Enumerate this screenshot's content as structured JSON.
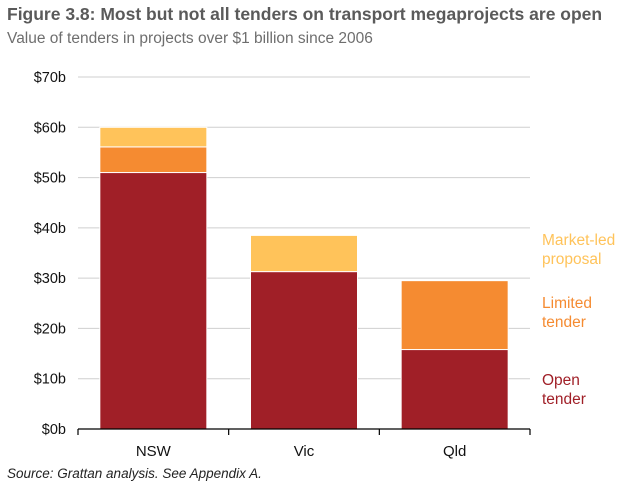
{
  "chart_data": {
    "type": "bar",
    "stacked": true,
    "title": "Figure 3.8: Most but not all tenders on transport megaprojects are open",
    "subtitle": "Value of tenders in projects over $1 billion since 2006",
    "source": "Source: Grattan analysis. See Appendix A.",
    "categories": [
      "NSW",
      "Vic",
      "Qld"
    ],
    "series": [
      {
        "name": "Open tender",
        "label_lines": [
          "Open",
          "tender"
        ],
        "color": "#a01f27",
        "values": [
          51,
          31.3,
          15.8
        ]
      },
      {
        "name": "Limited tender",
        "label_lines": [
          "Limited",
          "tender"
        ],
        "color": "#f58b31",
        "values": [
          5.1,
          0,
          13.7
        ]
      },
      {
        "name": "Market-led proposal",
        "label_lines": [
          "Market-led",
          "proposal"
        ],
        "color": "#ffc35a",
        "values": [
          3.9,
          7.2,
          0
        ]
      }
    ],
    "y_ticks": [
      "$0b",
      "$10b",
      "$20b",
      "$30b",
      "$40b",
      "$50b",
      "$60b",
      "$70b"
    ],
    "ylim": [
      0,
      70
    ],
    "xlabel": "",
    "ylabel": "",
    "grid": true,
    "legend": "right, inline labels"
  }
}
